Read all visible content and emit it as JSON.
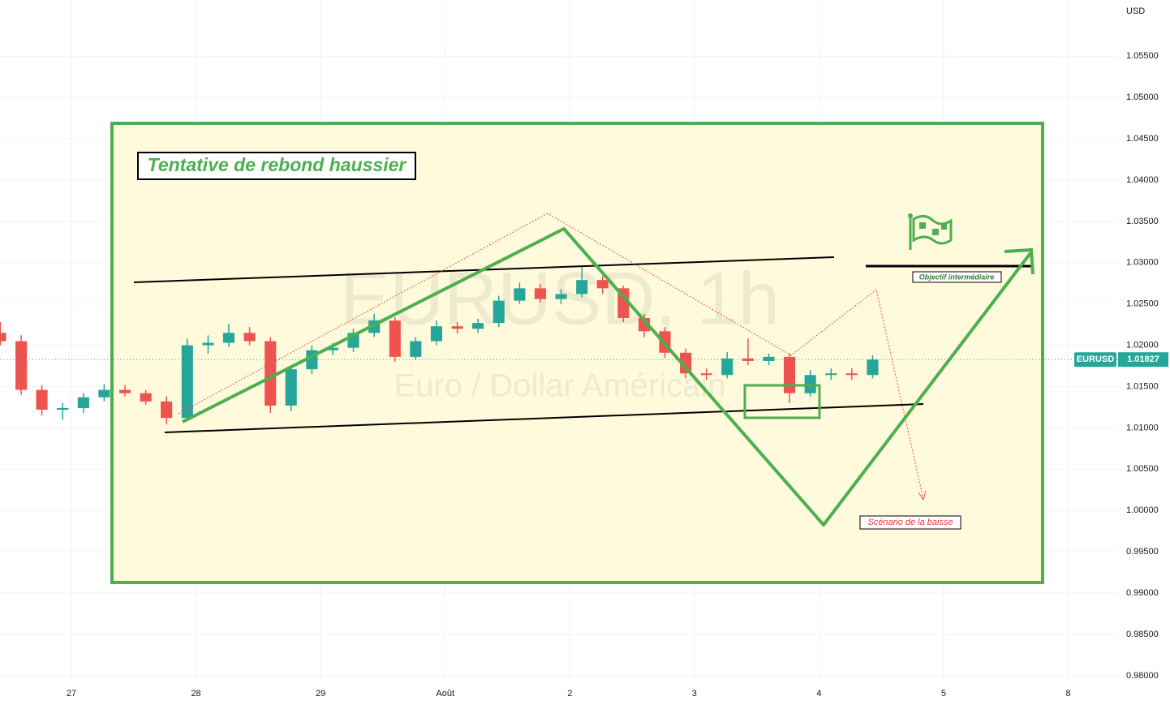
{
  "chart_data": {
    "type": "candlestick",
    "title": "EURUSD, 1h",
    "subtitle": "Euro / Dollar Américain",
    "y_axis_label": "USD",
    "symbol_tag": "EURUSD",
    "annotations": [
      "Tentative de rebond haussier",
      "Objectif intermédiaire",
      "Scénario de la baisse"
    ],
    "up_color": "#26a69a",
    "down_color": "#ef5350",
    "grid": true,
    "xlim": [
      -0.573,
      8.4
    ],
    "ylim": [
      0.9793,
      1.0618
    ],
    "xticks": [
      {
        "value": 0,
        "label": "27"
      },
      {
        "value": 1,
        "label": "28"
      },
      {
        "value": 2,
        "label": "29"
      },
      {
        "value": 3,
        "label": "Août"
      },
      {
        "value": 4,
        "label": "2"
      },
      {
        "value": 5,
        "label": "3"
      },
      {
        "value": 6,
        "label": "4"
      },
      {
        "value": 7,
        "label": "5"
      },
      {
        "value": 8,
        "label": "8"
      }
    ],
    "yticks": [
      {
        "value": 0.98,
        "label": "0.98000"
      },
      {
        "value": 0.985,
        "label": "0.98500"
      },
      {
        "value": 0.99,
        "label": "0.99000"
      },
      {
        "value": 0.995,
        "label": "0.99500"
      },
      {
        "value": 1.0,
        "label": "1.00000"
      },
      {
        "value": 1.005,
        "label": "1.00500"
      },
      {
        "value": 1.01,
        "label": "1.01000"
      },
      {
        "value": 1.015,
        "label": "1.01500"
      },
      {
        "value": 1.02,
        "label": "1.02000"
      },
      {
        "value": 1.025,
        "label": "1.02500"
      },
      {
        "value": 1.03,
        "label": "1.03000"
      },
      {
        "value": 1.035,
        "label": "1.03500"
      },
      {
        "value": 1.04,
        "label": "1.04000"
      },
      {
        "value": 1.045,
        "label": "1.04500"
      },
      {
        "value": 1.05,
        "label": "1.05000"
      },
      {
        "value": 1.055,
        "label": "1.05500"
      }
    ],
    "x": [
      -0.57,
      -0.403,
      -0.237,
      -0.07,
      0.097,
      0.263,
      0.43,
      0.597,
      0.763,
      0.93,
      1.097,
      1.263,
      1.43,
      1.597,
      1.763,
      1.93,
      2.097,
      2.263,
      2.43,
      2.597,
      2.763,
      2.93,
      3.097,
      3.263,
      3.43,
      3.597,
      3.763,
      3.93,
      4.097,
      4.263,
      4.43,
      4.597,
      4.763,
      4.93,
      5.097,
      5.263,
      5.43,
      5.597,
      5.763,
      5.93,
      6.097,
      6.263,
      6.43
    ],
    "open": [
      1.0215,
      1.0205,
      1.0146,
      1.0122,
      1.0124,
      1.0137,
      1.0146,
      1.0142,
      1.0132,
      1.0112,
      1.02,
      1.0203,
      1.0215,
      1.0205,
      1.0127,
      1.0171,
      1.0194,
      1.0197,
      1.0215,
      1.023,
      1.0186,
      1.0205,
      1.0223,
      1.022,
      1.0227,
      1.0254,
      1.0269,
      1.0256,
      1.0262,
      1.0279,
      1.0269,
      1.0233,
      1.0217,
      1.0191,
      1.0166,
      1.0164,
      1.0184,
      1.0181,
      1.0186,
      1.0142,
      1.0164,
      1.0166,
      1.0164
    ],
    "high": [
      1.0228,
      1.0212,
      1.0152,
      1.013,
      1.0142,
      1.0153,
      1.0152,
      1.0146,
      1.0138,
      1.0208,
      1.0212,
      1.0226,
      1.0222,
      1.021,
      1.0176,
      1.02,
      1.0203,
      1.022,
      1.0238,
      1.0234,
      1.021,
      1.023,
      1.0228,
      1.0232,
      1.026,
      1.0276,
      1.0274,
      1.0268,
      1.0295,
      1.0284,
      1.0272,
      1.0238,
      1.0222,
      1.0196,
      1.0172,
      1.0192,
      1.0208,
      1.019,
      1.019,
      1.017,
      1.0172,
      1.0172,
      1.0188
    ],
    "low": [
      1.02,
      1.014,
      1.0115,
      1.011,
      1.0118,
      1.0132,
      1.0138,
      1.0128,
      1.0104,
      1.0108,
      1.019,
      1.0198,
      1.02,
      1.0118,
      1.012,
      1.0165,
      1.0188,
      1.0192,
      1.021,
      1.018,
      1.0182,
      1.02,
      1.0214,
      1.0215,
      1.0222,
      1.025,
      1.0252,
      1.025,
      1.0258,
      1.0262,
      1.0228,
      1.021,
      1.0185,
      1.016,
      1.0158,
      1.016,
      1.0176,
      1.0176,
      1.013,
      1.0138,
      1.0158,
      1.0158,
      1.016
    ],
    "close": [
      1.0205,
      1.0146,
      1.0122,
      1.0124,
      1.0137,
      1.0146,
      1.0142,
      1.0132,
      1.0112,
      1.02,
      1.0203,
      1.0215,
      1.0205,
      1.0127,
      1.0171,
      1.0194,
      1.0197,
      1.0215,
      1.023,
      1.0186,
      1.0205,
      1.0223,
      1.022,
      1.0227,
      1.0254,
      1.0269,
      1.0256,
      1.0262,
      1.0279,
      1.0269,
      1.0233,
      1.0217,
      1.0191,
      1.0166,
      1.0164,
      1.0184,
      1.0181,
      1.0186,
      1.0142,
      1.0164,
      1.0166,
      1.0164,
      1.01827
    ]
  }
}
